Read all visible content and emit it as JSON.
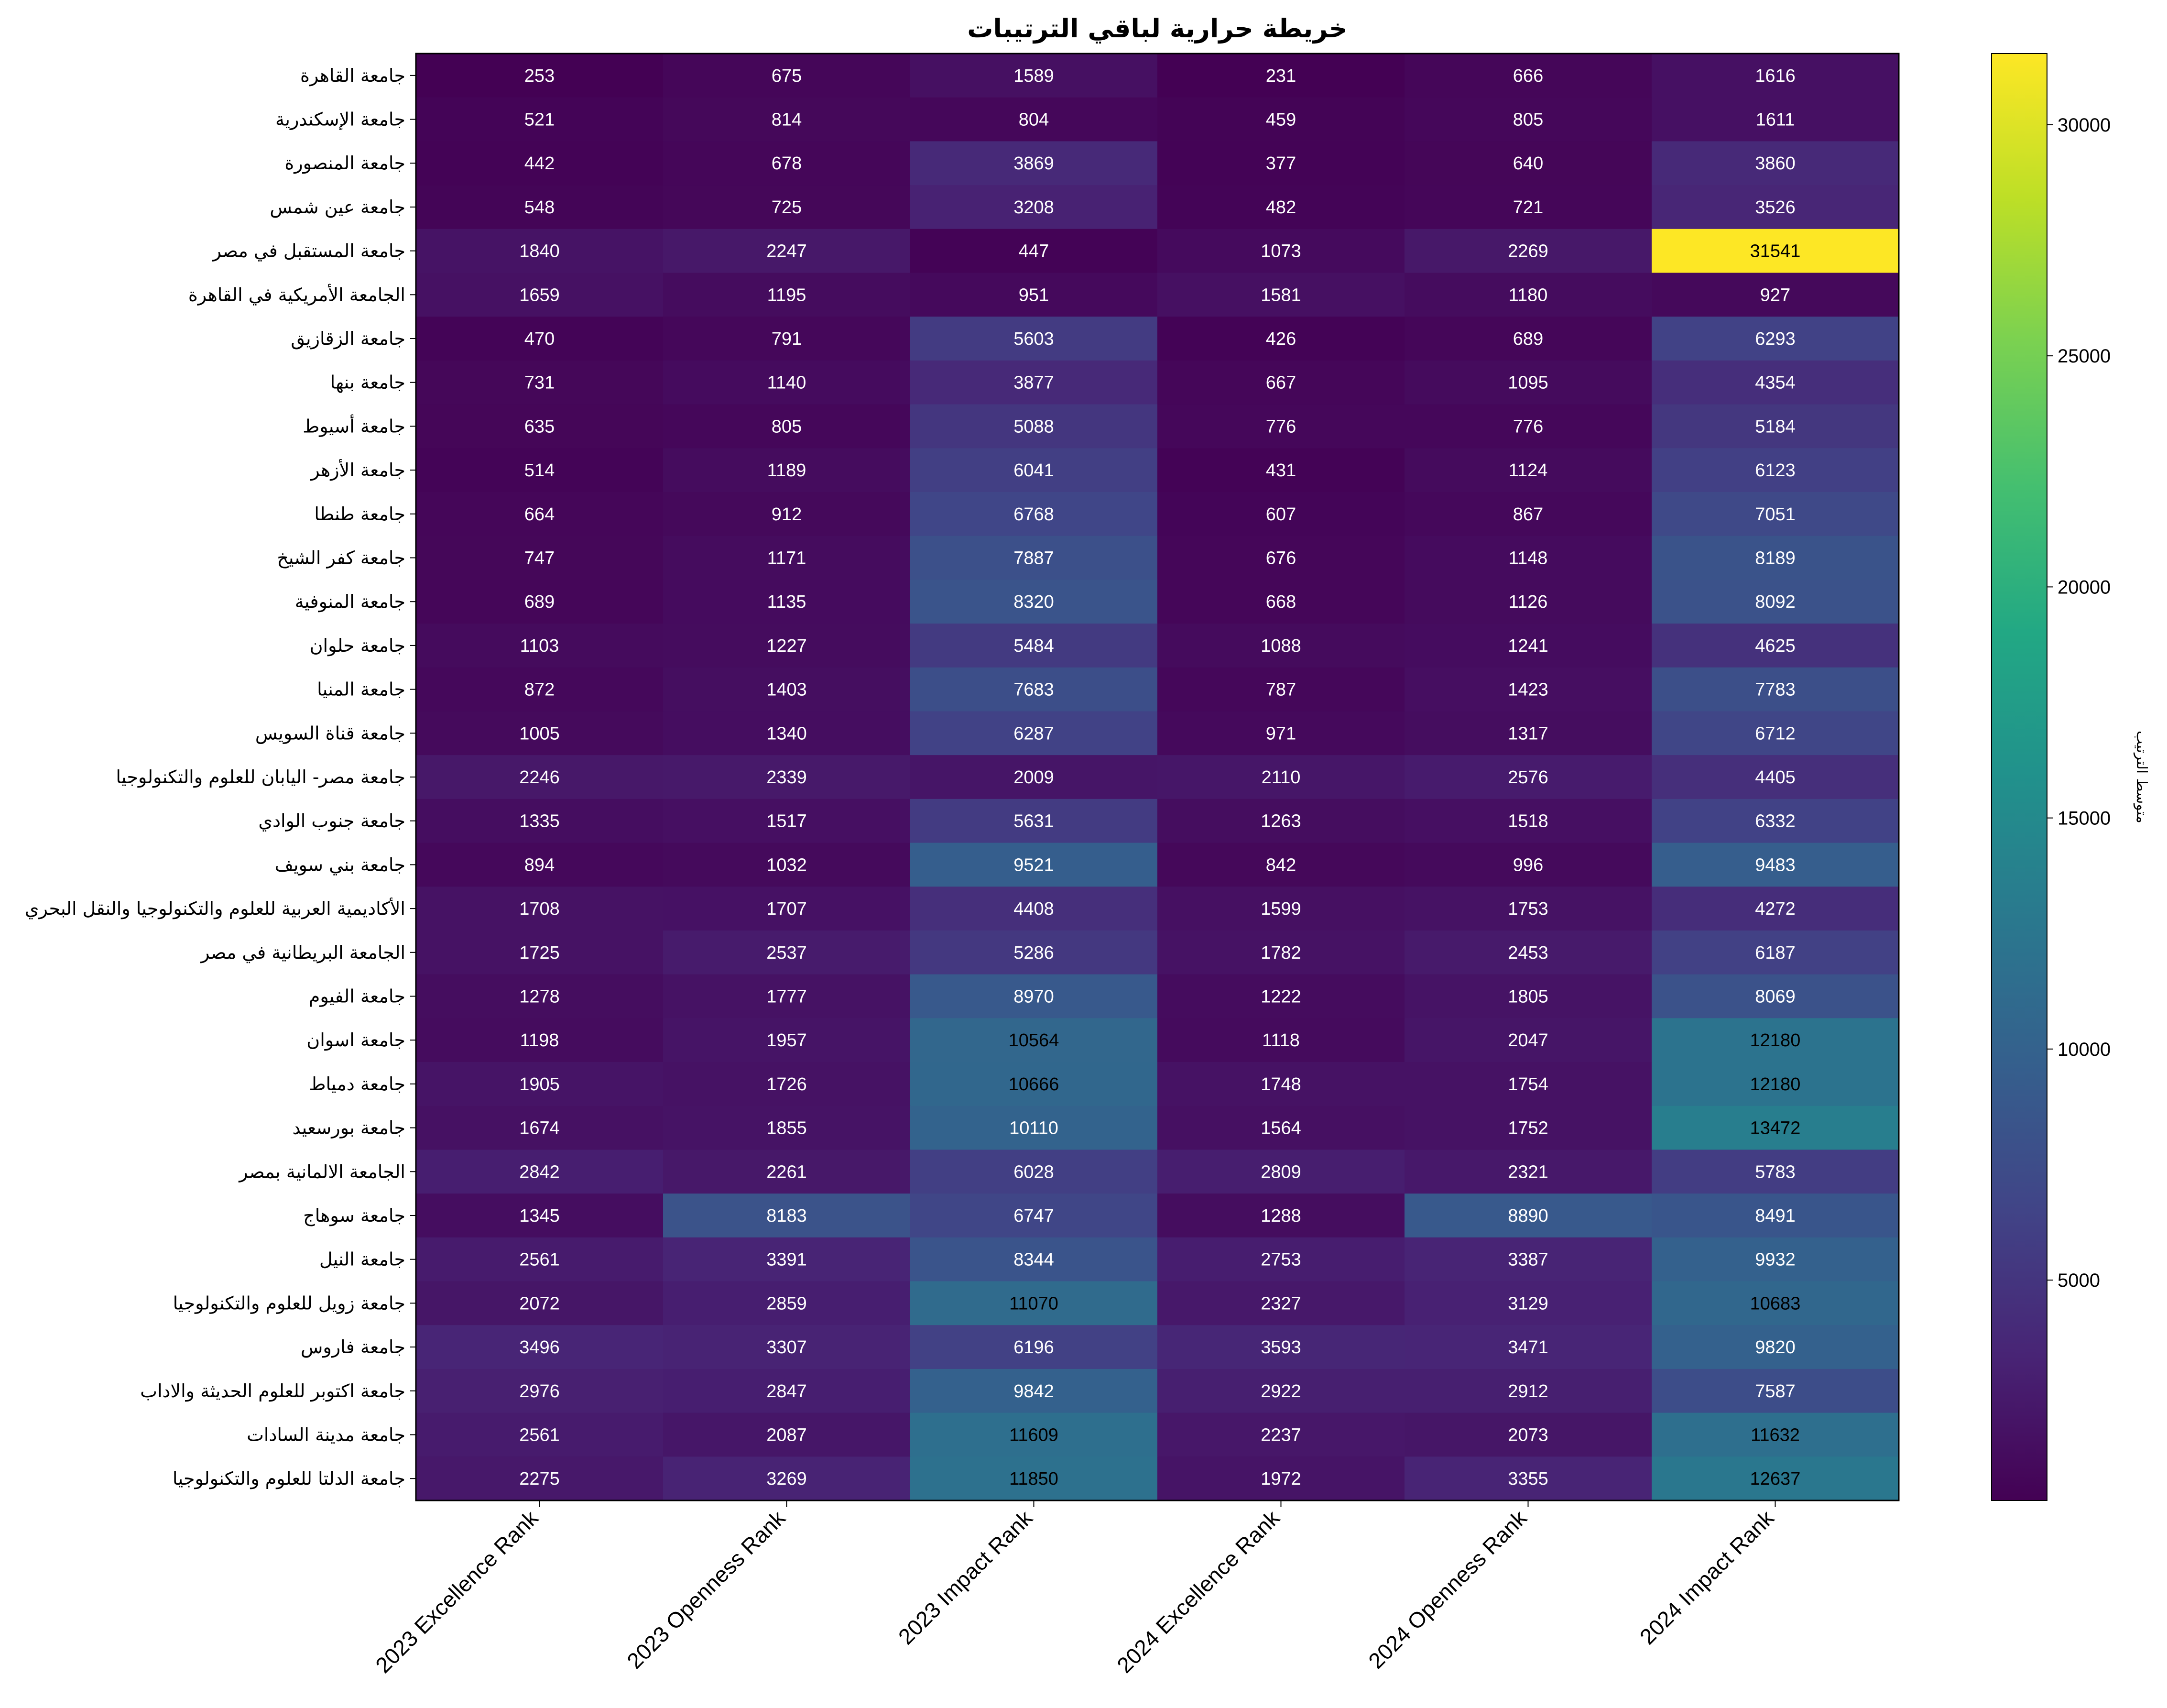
{
  "chart_data": {
    "type": "heatmap",
    "title": "خريطة حرارية لباقي الترتيبات",
    "columns": [
      "2023 Excellence Rank",
      "2023 Openness Rank",
      "2023 Impact Rank",
      "2024 Excellence Rank",
      "2024 Openness Rank",
      "2024 Impact Rank"
    ],
    "rows": [
      "جامعة القاهرة",
      "جامعة الإسكندرية",
      "جامعة المنصورة",
      "جامعة عين شمس",
      "جامعة المستقبل في مصر",
      "الجامعة الأمريكية في القاهرة",
      "جامعة الزقازيق",
      "جامعة بنها",
      "جامعة أسيوط",
      "جامعة الأزهر",
      "جامعة طنطا",
      "جامعة كفر الشيخ",
      "جامعة المنوفية",
      "جامعة حلوان",
      "جامعة المنيا",
      "جامعة قناة السويس",
      "جامعة مصر- اليابان للعلوم والتكنولوجيا",
      "جامعة جنوب الوادي",
      "جامعة بني سويف",
      "الأكاديمية العربية للعلوم والتكنولوجيا والنقل البحري",
      "الجامعة البريطانية في مصر",
      "جامعة الفيوم",
      "جامعة اسوان",
      "جامعة دمياط",
      "جامعة بورسعيد",
      "الجامعة الالمانية بمصر",
      "جامعة سوهاج",
      "جامعة النيل",
      "جامعة زويل للعلوم والتكنولوجيا",
      "جامعة فاروس",
      "جامعة اكتوبر للعلوم الحديثة والاداب",
      "جامعة مدينة السادات",
      "جامعة الدلتا للعلوم والتكنولوجيا"
    ],
    "values": [
      [
        253,
        675,
        1589,
        231,
        666,
        1616
      ],
      [
        521,
        814,
        804,
        459,
        805,
        1611
      ],
      [
        442,
        678,
        3869,
        377,
        640,
        3860
      ],
      [
        548,
        725,
        3208,
        482,
        721,
        3526
      ],
      [
        1840,
        2247,
        447,
        1073,
        2269,
        31541
      ],
      [
        1659,
        1195,
        951,
        1581,
        1180,
        927
      ],
      [
        470,
        791,
        5603,
        426,
        689,
        6293
      ],
      [
        731,
        1140,
        3877,
        667,
        1095,
        4354
      ],
      [
        635,
        805,
        5088,
        776,
        776,
        5184
      ],
      [
        514,
        1189,
        6041,
        431,
        1124,
        6123
      ],
      [
        664,
        912,
        6768,
        607,
        867,
        7051
      ],
      [
        747,
        1171,
        7887,
        676,
        1148,
        8189
      ],
      [
        689,
        1135,
        8320,
        668,
        1126,
        8092
      ],
      [
        1103,
        1227,
        5484,
        1088,
        1241,
        4625
      ],
      [
        872,
        1403,
        7683,
        787,
        1423,
        7783
      ],
      [
        1005,
        1340,
        6287,
        971,
        1317,
        6712
      ],
      [
        2246,
        2339,
        2009,
        2110,
        2576,
        4405
      ],
      [
        1335,
        1517,
        5631,
        1263,
        1518,
        6332
      ],
      [
        894,
        1032,
        9521,
        842,
        996,
        9483
      ],
      [
        1708,
        1707,
        4408,
        1599,
        1753,
        4272
      ],
      [
        1725,
        2537,
        5286,
        1782,
        2453,
        6187
      ],
      [
        1278,
        1777,
        8970,
        1222,
        1805,
        8069
      ],
      [
        1198,
        1957,
        10564,
        1118,
        2047,
        12180
      ],
      [
        1905,
        1726,
        10666,
        1748,
        1754,
        12180
      ],
      [
        1674,
        1855,
        10110,
        1564,
        1752,
        13472
      ],
      [
        2842,
        2261,
        6028,
        2809,
        2321,
        5783
      ],
      [
        1345,
        8183,
        6747,
        1288,
        8890,
        8491
      ],
      [
        2561,
        3391,
        8344,
        2753,
        3387,
        9932
      ],
      [
        2072,
        2859,
        11070,
        2327,
        3129,
        10683
      ],
      [
        3496,
        3307,
        6196,
        3593,
        3471,
        9820
      ],
      [
        2976,
        2847,
        9842,
        2922,
        2912,
        7587
      ],
      [
        2561,
        2087,
        11609,
        2237,
        2073,
        11632
      ],
      [
        2275,
        3269,
        11850,
        1972,
        3355,
        12637
      ]
    ],
    "colormap": "viridis",
    "colorbar": {
      "label": "متوسط الترتيب",
      "ticks": [
        5000,
        10000,
        15000,
        20000,
        25000,
        30000
      ],
      "range": [
        231,
        31541
      ]
    }
  }
}
